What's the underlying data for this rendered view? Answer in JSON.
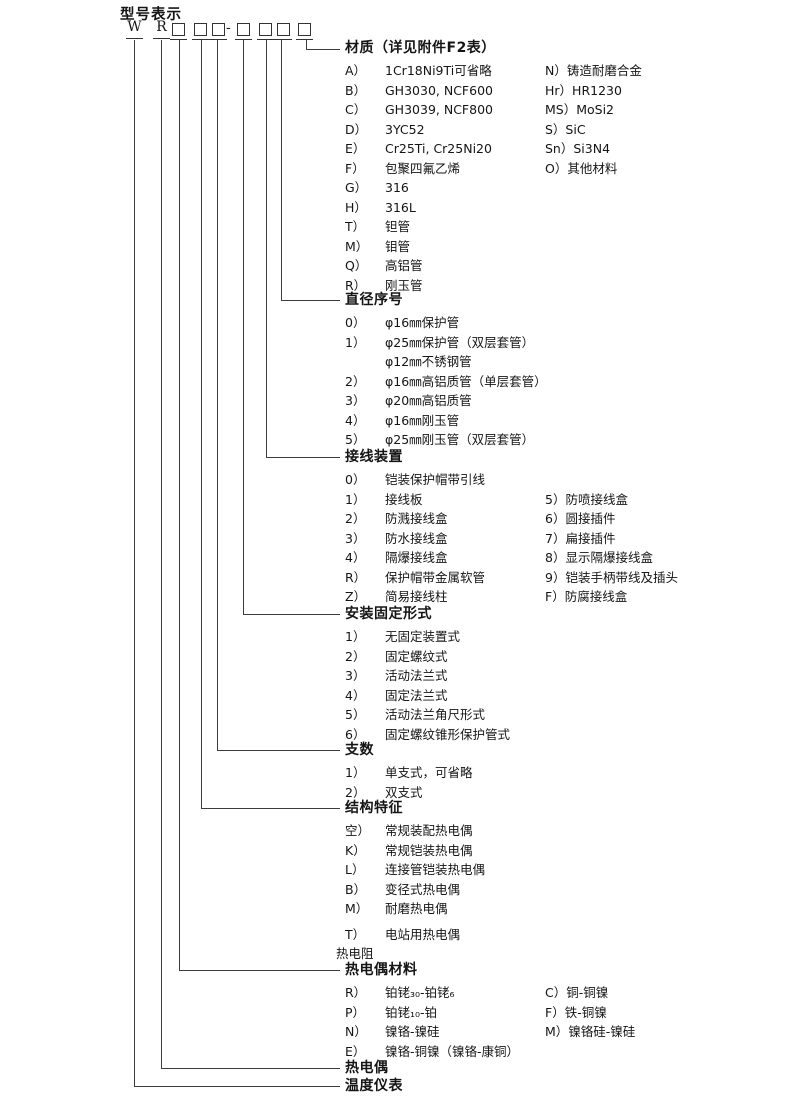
{
  "title": "型号表示",
  "code": {
    "w": "W",
    "r": "R",
    "hyphen": "-"
  },
  "sections": [
    {
      "id": "material",
      "header": "材质（详见附件F2表）",
      "rows": [
        {
          "label": "A）",
          "text": "1Cr18Ni9Ti可省略",
          "right_label": "N）",
          "right_text": "铸造耐磨合金"
        },
        {
          "label": "B）",
          "text": "GH3030, NCF600",
          "right_label": "Hr）",
          "right_text": "HR1230"
        },
        {
          "label": "C）",
          "text": "GH3039, NCF800",
          "right_label": "MS）",
          "right_text": "MoSi2"
        },
        {
          "label": "D）",
          "text": "3YC52",
          "right_label": "S）",
          "right_text": "SiC"
        },
        {
          "label": "E）",
          "text": "Cr25Ti, Cr25Ni20",
          "right_label": "Sn）",
          "right_text": "Si3N4"
        },
        {
          "label": "F）",
          "text": "包聚四氟乙烯",
          "right_label": "O）",
          "right_text": "其他材料"
        },
        {
          "label": "G）",
          "text": "316"
        },
        {
          "label": "H）",
          "text": "316L"
        },
        {
          "label": "T）",
          "text": "钽管"
        },
        {
          "label": "M）",
          "text": "钼管"
        },
        {
          "label": "Q）",
          "text": "高铝管"
        },
        {
          "label": "R）",
          "text": "刚玉管"
        }
      ]
    },
    {
      "id": "diameter",
      "header": "直径序号",
      "rows": [
        {
          "label": "0）",
          "text": "φ16㎜保护管"
        },
        {
          "label": "1）",
          "text": "φ25㎜保护管（双层套管）"
        },
        {
          "text": "φ12㎜不锈钢管"
        },
        {
          "label": "2）",
          "text": "φ16㎜高铝质管（单层套管）"
        },
        {
          "label": "3）",
          "text": "φ20㎜高铝质管"
        },
        {
          "label": "4）",
          "text": "φ16㎜刚玉管"
        },
        {
          "label": "5）",
          "text": "φ25㎜刚玉管（双层套管）"
        }
      ]
    },
    {
      "id": "terminal",
      "header": "接线装置",
      "rows": [
        {
          "label": "0）",
          "text": "铠装保护帽带引线"
        },
        {
          "label": "1）",
          "text": "接线板",
          "right_label": "5）",
          "right_text": "防喷接线盒"
        },
        {
          "label": "2）",
          "text": "防溅接线盒",
          "right_label": "6）",
          "right_text": "圆接插件"
        },
        {
          "label": "3）",
          "text": "防水接线盒",
          "right_label": "7）",
          "right_text": "扁接插件"
        },
        {
          "label": "4）",
          "text": "隔爆接线盒",
          "right_label": "8）",
          "right_text": "显示隔爆接线盒"
        },
        {
          "label": "R）",
          "text": "保护帽带金属软管",
          "right_label": "9）",
          "right_text": "铠装手柄带线及插头"
        },
        {
          "label": "Z）",
          "text": "简易接线柱",
          "right_label": "F）",
          "right_text": "防腐接线盒"
        }
      ]
    },
    {
      "id": "mounting",
      "header": "安装固定形式",
      "rows": [
        {
          "label": "1）",
          "text": "无固定装置式"
        },
        {
          "label": "2）",
          "text": "固定螺纹式"
        },
        {
          "label": "3）",
          "text": "活动法兰式"
        },
        {
          "label": "4）",
          "text": "固定法兰式"
        },
        {
          "label": "5）",
          "text": "活动法兰角尺形式"
        },
        {
          "label": "6）",
          "text": "固定螺纹锥形保护管式"
        }
      ]
    },
    {
      "id": "branches",
      "header": "支数",
      "rows": [
        {
          "label": "1）",
          "text": "单支式，可省略"
        },
        {
          "label": "2）",
          "text": "双支式"
        }
      ]
    },
    {
      "id": "structure",
      "header": "结构特征",
      "rows": [
        {
          "label": "空）",
          "text": "常规装配热电偶"
        },
        {
          "label": "K）",
          "text": "常规铠装热电偶"
        },
        {
          "label": "L）",
          "text": "连接管铠装热电偶"
        },
        {
          "label": "B）",
          "text": "变径式热电偶"
        },
        {
          "label": "M）",
          "text": "耐磨热电偶"
        },
        {
          "label": "T）",
          "text": "电站用热电偶",
          "gap": true
        },
        {
          "plain": "热电阻"
        }
      ]
    },
    {
      "id": "tc-material",
      "header": "热电偶材料",
      "rows": [
        {
          "label": "R）",
          "text": "铂铑₃₀-铂铑₆",
          "right_label": "C）",
          "right_text": "铜-铜镍"
        },
        {
          "label": "P）",
          "text": "铂铑₁₀-铂",
          "right_label": "F）",
          "right_text": "铁-铜镍"
        },
        {
          "label": "N）",
          "text": "镍铬-镍硅",
          "right_label": "M）",
          "right_text": "镍铬硅-镍硅"
        },
        {
          "label": "E）",
          "text": "镍铬-铜镍（镍铬-康铜）"
        }
      ]
    },
    {
      "id": "thermocouple",
      "header": "热电偶",
      "rows": []
    },
    {
      "id": "temperature-instrument",
      "header": "温度仪表",
      "rows": []
    }
  ]
}
